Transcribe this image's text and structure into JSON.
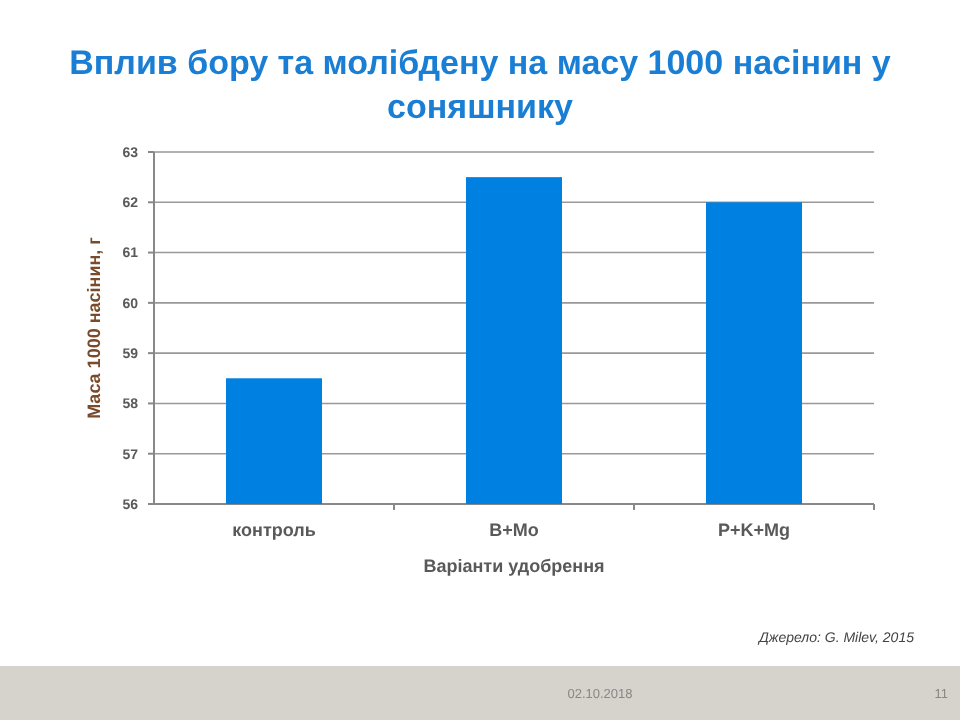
{
  "chart_data": {
    "type": "bar",
    "title": "Вплив бору та молібдену на масу 1000 насінин у соняшнику",
    "categories": [
      "контроль",
      "B+Mo",
      "P+K+Mg"
    ],
    "values": [
      58.5,
      62.5,
      62.0
    ],
    "color": "#0080e0",
    "xlabel": "Варіанти удобрення",
    "ylabel": "Маса 1000 насінин, г",
    "ylim": [
      56,
      63
    ],
    "yticks": [
      56,
      57,
      58,
      59,
      60,
      61,
      62,
      63
    ],
    "grid": "y",
    "annotations": [
      "Джерело: G. Milev, 2015",
      "02.10.2018",
      "11"
    ]
  }
}
